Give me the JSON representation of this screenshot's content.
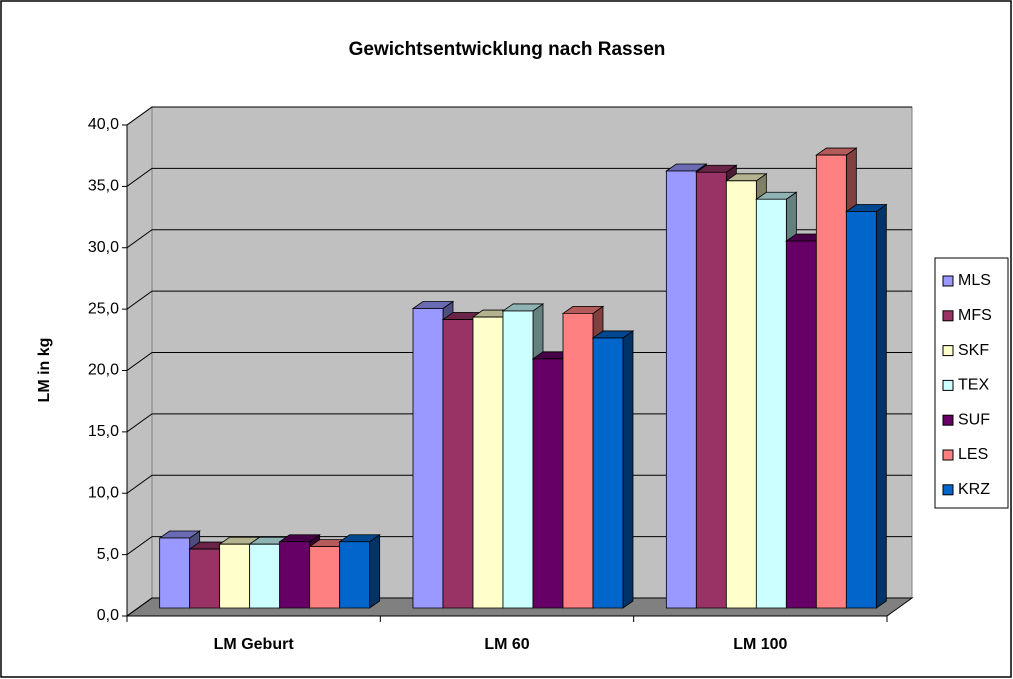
{
  "chart_data": {
    "type": "bar3d",
    "title": "Gewichtsentwicklung nach Rassen",
    "y_label": "LM in kg",
    "categories": [
      "LM Geburt",
      "LM 60",
      "LM 100"
    ],
    "series": [
      {
        "name": "MLS",
        "color": "#9999ff",
        "values": [
          5.7,
          24.4,
          35.6
        ]
      },
      {
        "name": "MFS",
        "color": "#993366",
        "values": [
          4.8,
          23.5,
          35.5
        ]
      },
      {
        "name": "SKF",
        "color": "#ffffcc",
        "values": [
          5.2,
          23.7,
          34.8
        ]
      },
      {
        "name": "TEX",
        "color": "#ccffff",
        "values": [
          5.2,
          24.2,
          33.3
        ]
      },
      {
        "name": "SUF",
        "color": "#660066",
        "values": [
          5.4,
          20.3,
          29.9
        ]
      },
      {
        "name": "LES",
        "color": "#ff8080",
        "values": [
          5.0,
          24.0,
          36.9
        ]
      },
      {
        "name": "KRZ",
        "color": "#0066cc",
        "values": [
          5.4,
          22.0,
          32.3
        ]
      }
    ],
    "ylim": [
      0,
      40
    ],
    "yticks": [
      {
        "value": 0,
        "label": "0,0"
      },
      {
        "value": 5,
        "label": "5,0"
      },
      {
        "value": 10,
        "label": "10,0"
      },
      {
        "value": 15,
        "label": "15,0"
      },
      {
        "value": 20,
        "label": "20,0"
      },
      {
        "value": 25,
        "label": "25,0"
      },
      {
        "value": 30,
        "label": "30,0"
      },
      {
        "value": 35,
        "label": "35,0"
      },
      {
        "value": 40,
        "label": "40,0"
      }
    ],
    "grid": true,
    "legend": "right"
  }
}
